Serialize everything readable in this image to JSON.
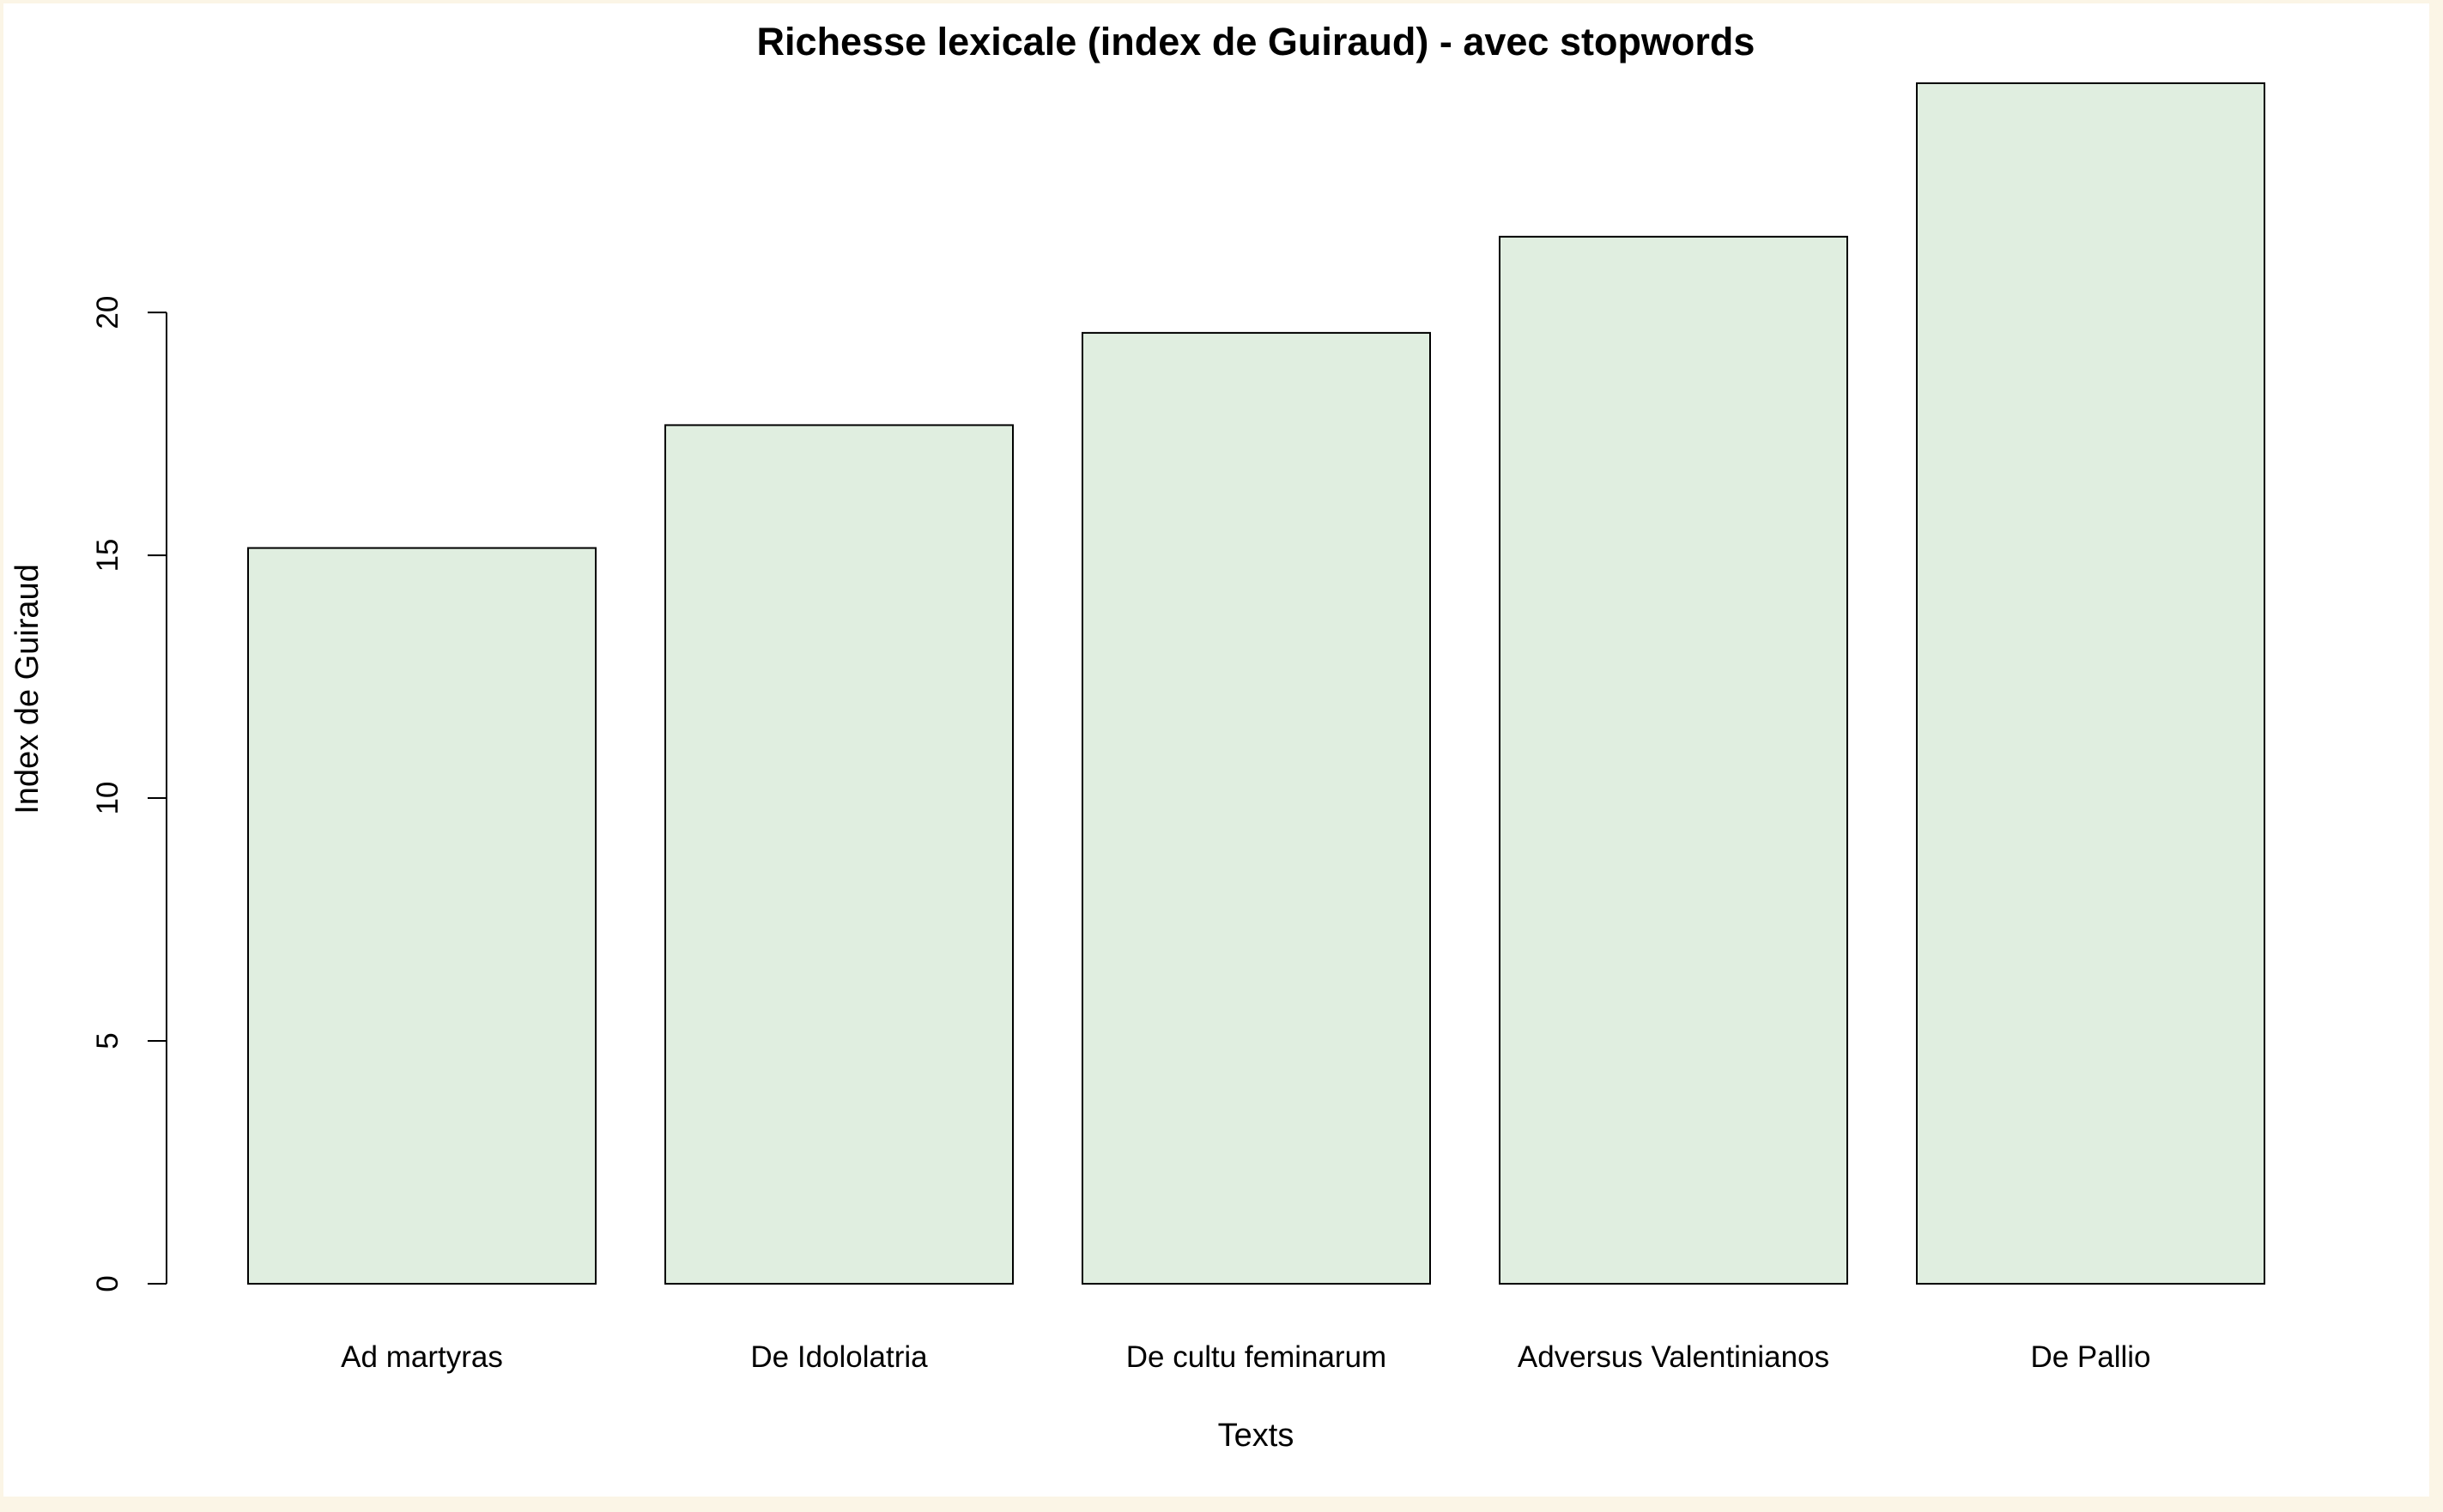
{
  "chart_data": {
    "type": "bar",
    "title": "Richesse lexicale (index de Guiraud) - avec stopwords",
    "xlabel": "Texts",
    "ylabel": "Index de Guiraud",
    "categories": [
      "Ad martyras",
      "De Idololatria",
      "De cultu feminarum",
      "Adversus Valentinianos",
      "De Pallio"
    ],
    "values": [
      15.15,
      17.68,
      19.58,
      21.56,
      24.72
    ],
    "ylim": [
      0,
      24.72
    ],
    "yticks": [
      "0",
      "5",
      "10",
      "15",
      "20"
    ],
    "grid": false,
    "bar_fill": "#e0eee0",
    "bar_stroke": "#000000",
    "background": "#fbf5e6"
  }
}
